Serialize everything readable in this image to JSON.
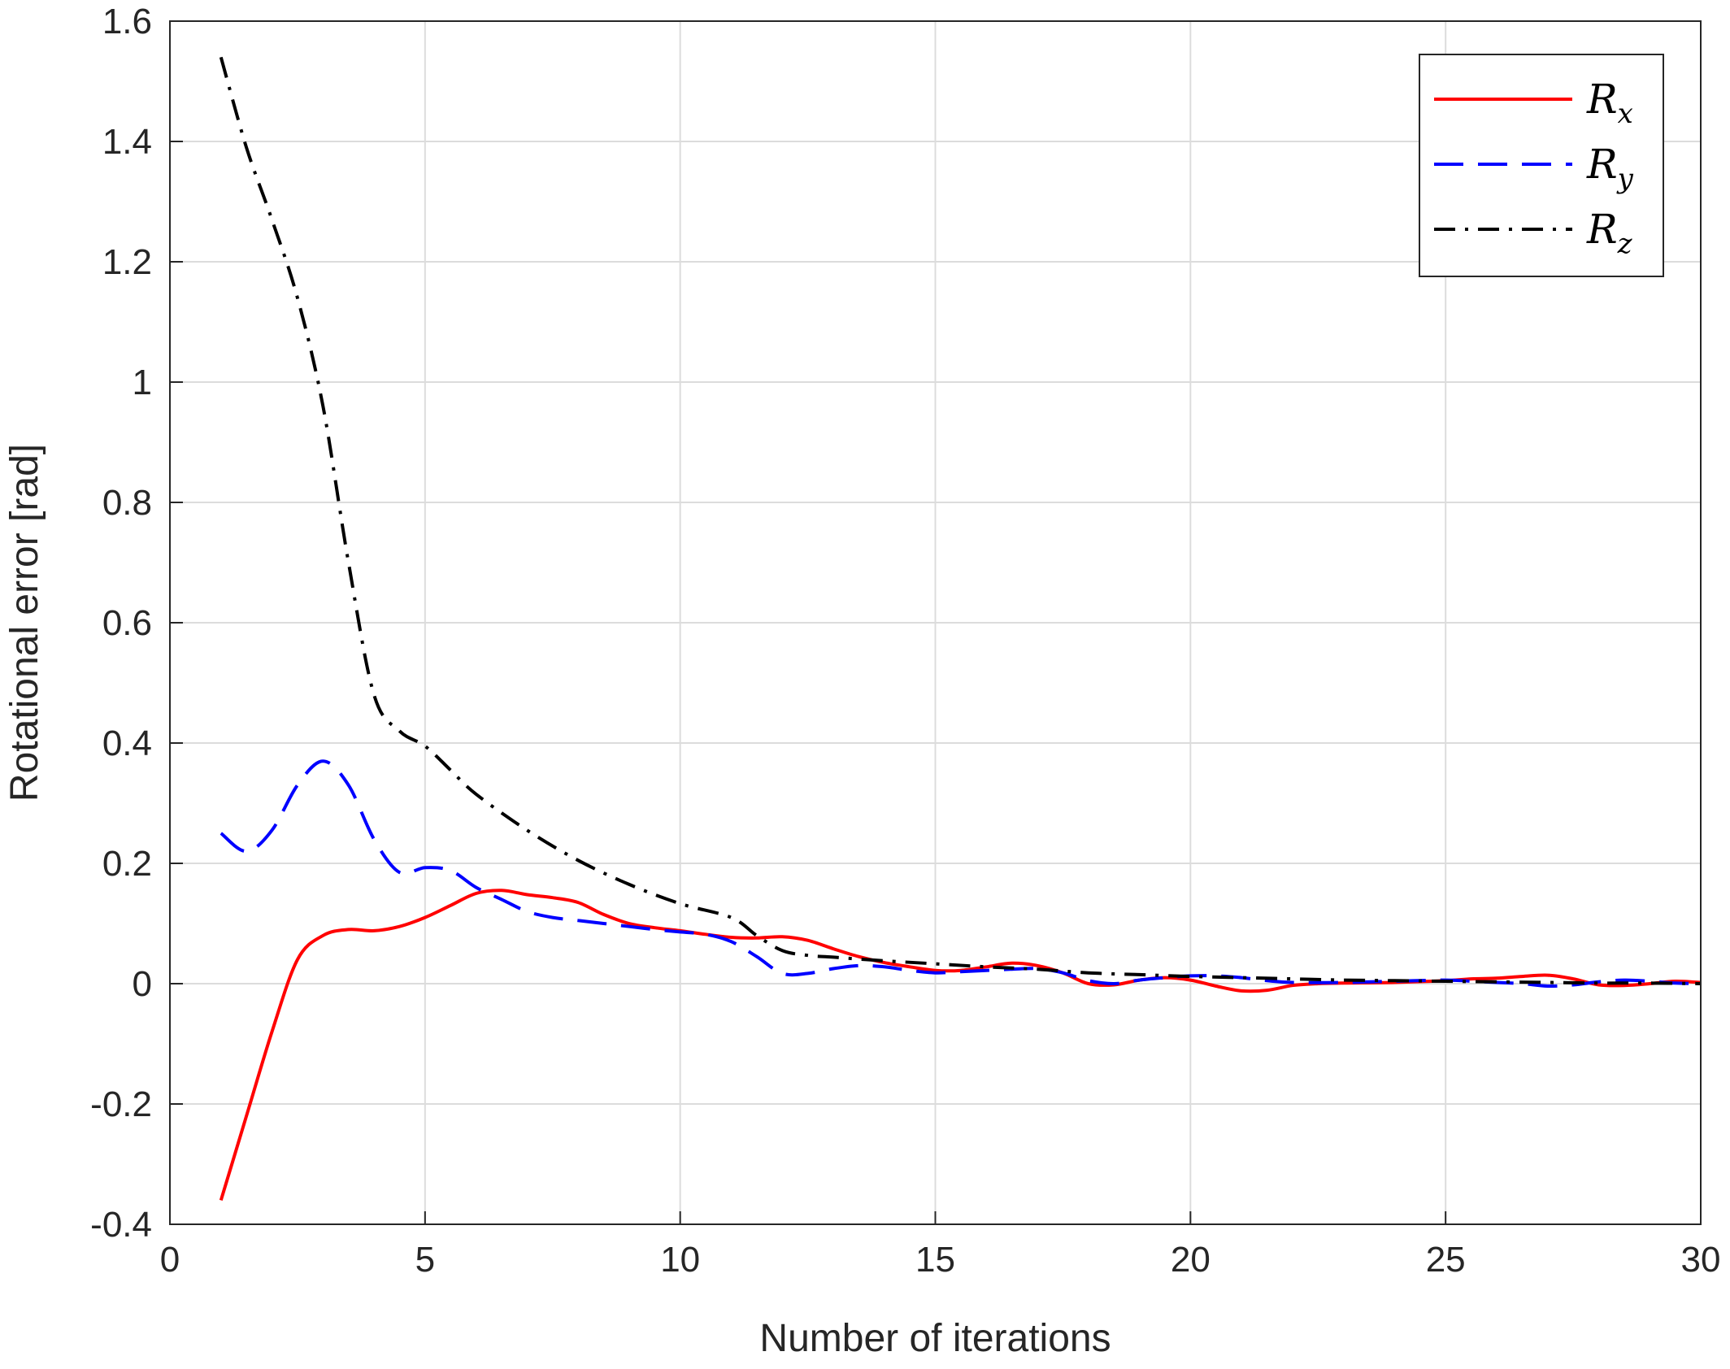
{
  "chart_data": {
    "type": "line",
    "xlabel": "Number of iterations",
    "ylabel": "Rotational error [rad]",
    "xlim": [
      0,
      30
    ],
    "ylim": [
      -0.4,
      1.6
    ],
    "x_ticks": [
      "0",
      "5",
      "10",
      "15",
      "20",
      "25",
      "30"
    ],
    "y_ticks": [
      "-0.4",
      "-0.2",
      "0",
      "0.2",
      "0.4",
      "0.6",
      "0.8",
      "1",
      "1.2",
      "1.4",
      "1.6"
    ],
    "grid": true,
    "legend_position": "top-right",
    "series": [
      {
        "name": "R_x",
        "label_main": "R",
        "label_sub": "x",
        "color": "#ff0000",
        "style": "solid",
        "points": [
          [
            1,
            -0.36
          ],
          [
            1.5,
            -0.22
          ],
          [
            2,
            -0.08
          ],
          [
            2.5,
            0.04
          ],
          [
            3,
            0.08
          ],
          [
            3.5,
            0.09
          ],
          [
            4,
            0.088
          ],
          [
            4.5,
            0.095
          ],
          [
            5,
            0.11
          ],
          [
            5.5,
            0.13
          ],
          [
            6,
            0.15
          ],
          [
            6.5,
            0.155
          ],
          [
            7,
            0.148
          ],
          [
            7.5,
            0.143
          ],
          [
            8,
            0.135
          ],
          [
            8.5,
            0.115
          ],
          [
            9,
            0.1
          ],
          [
            9.5,
            0.093
          ],
          [
            10,
            0.088
          ],
          [
            10.5,
            0.082
          ],
          [
            11,
            0.077
          ],
          [
            11.5,
            0.076
          ],
          [
            12,
            0.078
          ],
          [
            12.5,
            0.072
          ],
          [
            13,
            0.058
          ],
          [
            13.5,
            0.045
          ],
          [
            14,
            0.035
          ],
          [
            14.5,
            0.028
          ],
          [
            15,
            0.022
          ],
          [
            15.5,
            0.022
          ],
          [
            16,
            0.028
          ],
          [
            16.5,
            0.034
          ],
          [
            17,
            0.03
          ],
          [
            17.5,
            0.018
          ],
          [
            18,
            0.0
          ],
          [
            18.5,
            -0.002
          ],
          [
            19,
            0.006
          ],
          [
            19.5,
            0.01
          ],
          [
            20,
            0.006
          ],
          [
            20.5,
            -0.004
          ],
          [
            21,
            -0.012
          ],
          [
            21.5,
            -0.011
          ],
          [
            22,
            -0.003
          ],
          [
            22.5,
            0.0
          ],
          [
            23,
            0.001
          ],
          [
            24,
            0.002
          ],
          [
            25,
            0.005
          ],
          [
            25.5,
            0.008
          ],
          [
            26,
            0.009
          ],
          [
            26.5,
            0.012
          ],
          [
            27,
            0.014
          ],
          [
            27.5,
            0.008
          ],
          [
            28,
            -0.002
          ],
          [
            28.5,
            -0.003
          ],
          [
            29,
            0.0
          ],
          [
            29.5,
            0.004
          ],
          [
            30,
            0.002
          ]
        ]
      },
      {
        "name": "R_y",
        "label_main": "R",
        "label_sub": "y",
        "color": "#0000ff",
        "style": "dashed",
        "points": [
          [
            1,
            0.25
          ],
          [
            1.5,
            0.22
          ],
          [
            2,
            0.255
          ],
          [
            2.5,
            0.33
          ],
          [
            3,
            0.37
          ],
          [
            3.5,
            0.33
          ],
          [
            4,
            0.24
          ],
          [
            4.5,
            0.185
          ],
          [
            5,
            0.193
          ],
          [
            5.5,
            0.188
          ],
          [
            6,
            0.16
          ],
          [
            6.5,
            0.14
          ],
          [
            7,
            0.12
          ],
          [
            7.5,
            0.11
          ],
          [
            8,
            0.105
          ],
          [
            8.5,
            0.1
          ],
          [
            9,
            0.095
          ],
          [
            9.5,
            0.09
          ],
          [
            10,
            0.086
          ],
          [
            10.5,
            0.082
          ],
          [
            11,
            0.07
          ],
          [
            11.5,
            0.045
          ],
          [
            12,
            0.017
          ],
          [
            12.5,
            0.017
          ],
          [
            13,
            0.025
          ],
          [
            13.5,
            0.03
          ],
          [
            14,
            0.028
          ],
          [
            14.5,
            0.022
          ],
          [
            15,
            0.018
          ],
          [
            15.5,
            0.02
          ],
          [
            16,
            0.022
          ],
          [
            16.5,
            0.024
          ],
          [
            17,
            0.025
          ],
          [
            17.5,
            0.018
          ],
          [
            18,
            0.005
          ],
          [
            18.5,
            0.0
          ],
          [
            19,
            0.006
          ],
          [
            19.5,
            0.01
          ],
          [
            20,
            0.013
          ],
          [
            20.5,
            0.013
          ],
          [
            21,
            0.01
          ],
          [
            21.5,
            0.005
          ],
          [
            22,
            0.002
          ],
          [
            23,
            0.002
          ],
          [
            24,
            0.004
          ],
          [
            25,
            0.006
          ],
          [
            25.5,
            0.004
          ],
          [
            26,
            0.002
          ],
          [
            26.5,
            0.0
          ],
          [
            27,
            -0.004
          ],
          [
            27.5,
            -0.002
          ],
          [
            28,
            0.003
          ],
          [
            28.5,
            0.006
          ],
          [
            29,
            0.004
          ],
          [
            29.5,
            0.001
          ],
          [
            30,
            0.0
          ]
        ]
      },
      {
        "name": "R_z",
        "label_main": "R",
        "label_sub": "z",
        "color": "#000000",
        "style": "dashdot",
        "points": [
          [
            1,
            1.54
          ],
          [
            1.5,
            1.39
          ],
          [
            2,
            1.27
          ],
          [
            2.5,
            1.14
          ],
          [
            3,
            0.96
          ],
          [
            3.5,
            0.7
          ],
          [
            4,
            0.48
          ],
          [
            4.5,
            0.42
          ],
          [
            5,
            0.395
          ],
          [
            5.5,
            0.355
          ],
          [
            6,
            0.315
          ],
          [
            7,
            0.255
          ],
          [
            8,
            0.205
          ],
          [
            9,
            0.165
          ],
          [
            10,
            0.133
          ],
          [
            11,
            0.11
          ],
          [
            11.5,
            0.08
          ],
          [
            12,
            0.055
          ],
          [
            12.5,
            0.047
          ],
          [
            13,
            0.044
          ],
          [
            14,
            0.038
          ],
          [
            15,
            0.033
          ],
          [
            16,
            0.028
          ],
          [
            17,
            0.024
          ],
          [
            18,
            0.018
          ],
          [
            19,
            0.015
          ],
          [
            20,
            0.012
          ],
          [
            21,
            0.01
          ],
          [
            22,
            0.008
          ],
          [
            23,
            0.006
          ],
          [
            24,
            0.005
          ],
          [
            25,
            0.004
          ],
          [
            26,
            0.003
          ],
          [
            27,
            0.002
          ],
          [
            28,
            0.001
          ],
          [
            29,
            0.001
          ],
          [
            30,
            0.0
          ]
        ]
      }
    ]
  }
}
